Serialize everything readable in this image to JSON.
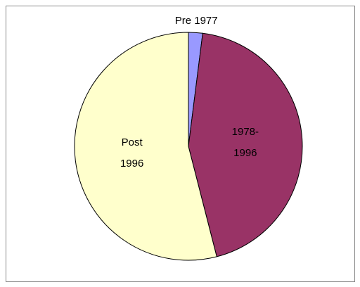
{
  "chart_data": {
    "type": "pie",
    "categories": [
      [
        "Pre 1977"
      ],
      [
        "1978-",
        "1996"
      ],
      [
        "Post",
        "1996"
      ]
    ],
    "values": [
      2,
      44,
      54
    ],
    "colors": [
      "#9999ff",
      "#993366",
      "#ffffcc"
    ]
  }
}
